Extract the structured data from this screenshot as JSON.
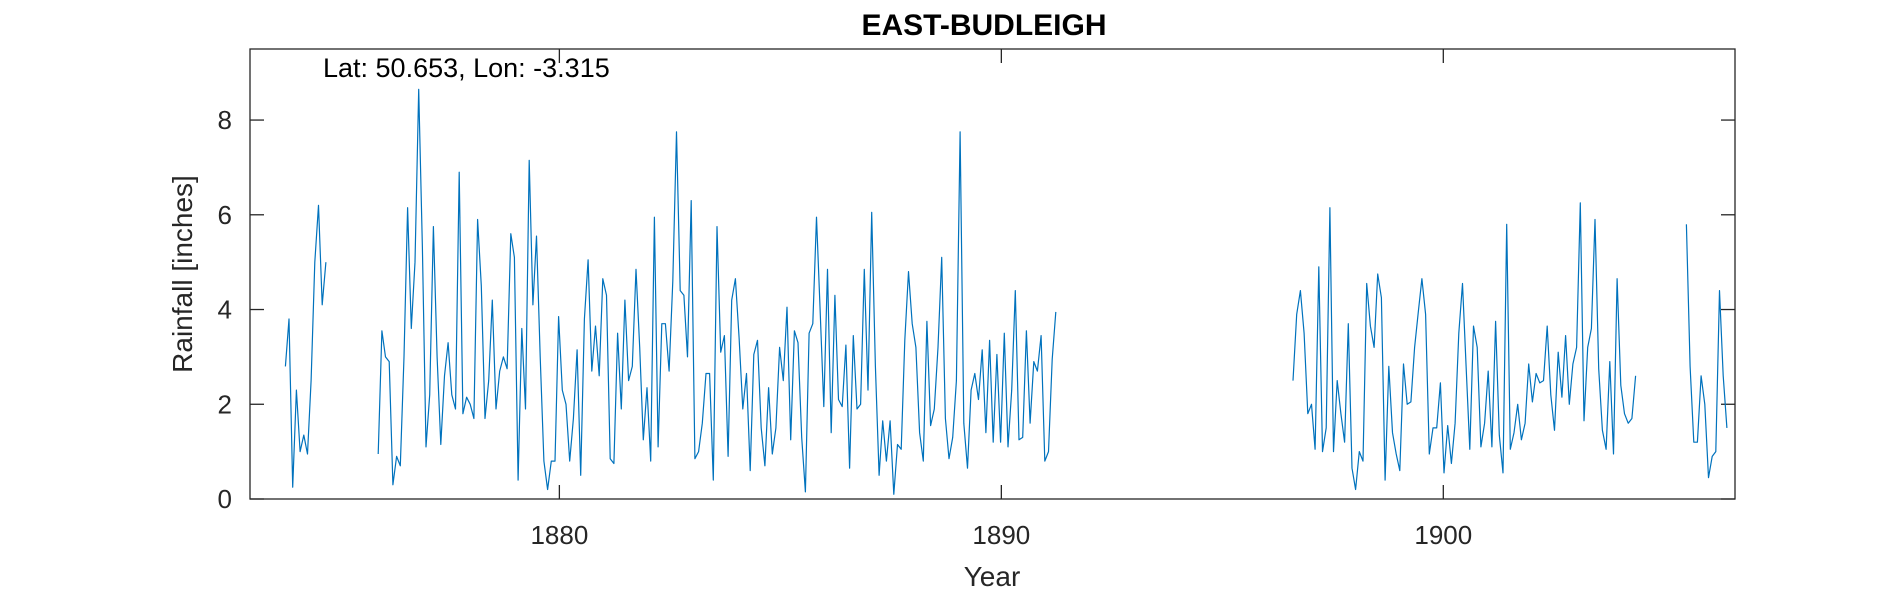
{
  "chart_data": {
    "type": "line",
    "title": "EAST-BUDLEIGH",
    "annotation": "Lat: 50.653, Lon: -3.315",
    "xlabel": "Year",
    "ylabel": "Rainfall [inches]",
    "xlim": [
      1873,
      1906.6
    ],
    "ylim": [
      0,
      9.5
    ],
    "xticks": [
      1880,
      1890,
      1900
    ],
    "yticks": [
      0,
      2,
      4,
      6,
      8
    ],
    "grid": false,
    "box": true,
    "series_color": "#0072BD",
    "segments": [
      {
        "start_year": 1873.8,
        "values": [
          2.8,
          3.8,
          0.25,
          2.3,
          1.0,
          1.35,
          0.95,
          2.5,
          5.0,
          6.2,
          4.1,
          5.0
        ]
      },
      {
        "start_year": 1875.9,
        "values": [
          0.95,
          3.55,
          3.0,
          2.9,
          0.3,
          0.9,
          0.7,
          3.0,
          6.15,
          3.6,
          5.0,
          8.65,
          5.3,
          1.1,
          2.2,
          5.75,
          3.0,
          1.15,
          2.6,
          3.3,
          2.2,
          1.9,
          6.9,
          1.8,
          2.15,
          2.0,
          1.7,
          5.9,
          4.5,
          1.7,
          2.5,
          4.2,
          1.9,
          2.7,
          3.0,
          2.75,
          5.6,
          5.1,
          0.4,
          3.6,
          1.9,
          7.15,
          4.1,
          5.55,
          3.0,
          0.8,
          0.2,
          0.8,
          0.8,
          3.85,
          2.3,
          2.0,
          0.8,
          1.7,
          3.15,
          0.5,
          3.8,
          5.05,
          2.7,
          3.65,
          2.6,
          4.65,
          4.3,
          0.85,
          0.75,
          3.5,
          1.9,
          4.2,
          2.5,
          2.8,
          4.85,
          3.2,
          1.25,
          2.35,
          0.8,
          5.95,
          1.1,
          3.7,
          3.7,
          2.7,
          4.6,
          7.75,
          4.4,
          4.3,
          3.0,
          6.3,
          0.85,
          1.0,
          1.6,
          2.65,
          2.65,
          0.4,
          5.75,
          3.1,
          3.45,
          0.9,
          4.2,
          4.65,
          3.4,
          1.9,
          2.65,
          0.6,
          3.05,
          3.35,
          1.5,
          0.7,
          2.35,
          0.95,
          1.5,
          3.2,
          2.5,
          4.05,
          1.25,
          3.55,
          3.3,
          1.3,
          0.15,
          3.5,
          3.7,
          5.95,
          4.0,
          1.95,
          4.85,
          1.4,
          4.3,
          2.1,
          1.95,
          3.25,
          0.65,
          3.45,
          1.9,
          2.0,
          4.85,
          2.3,
          6.05,
          2.8,
          0.5,
          1.65,
          0.8,
          1.65,
          0.1,
          1.15,
          1.05,
          3.35,
          4.8,
          3.7,
          3.2,
          1.4,
          0.8,
          3.75,
          1.55,
          1.9,
          3.2,
          5.1,
          1.7,
          0.85,
          1.3,
          2.5,
          7.75,
          1.6,
          0.65,
          2.3,
          2.65,
          2.1,
          3.15,
          1.4,
          3.35,
          1.2,
          3.05,
          1.2,
          3.5,
          1.1,
          2.3,
          4.4,
          1.25,
          1.3,
          3.55,
          1.6,
          2.9,
          2.7,
          3.45,
          0.8,
          1.0,
          2.95,
          3.95
        ]
      },
      {
        "start_year": 1896.6,
        "values": [
          2.5,
          3.9,
          4.4,
          3.5,
          1.8,
          2.0,
          1.05,
          4.9,
          1.0,
          1.5,
          6.15,
          1.0,
          2.5,
          1.8,
          1.2,
          3.7,
          0.65,
          0.2,
          1.0,
          0.8,
          4.55,
          3.65,
          3.2,
          4.75,
          4.25,
          0.4,
          2.8,
          1.4,
          0.95,
          0.6,
          2.85,
          2.0,
          2.05,
          3.2,
          3.95,
          4.65,
          3.9,
          0.95,
          1.5,
          1.5,
          2.45,
          0.55,
          1.55,
          0.75,
          1.6,
          3.5,
          4.55,
          2.8,
          1.05,
          3.65,
          3.2,
          1.1,
          1.6,
          2.7,
          1.1,
          3.75,
          1.35,
          0.55,
          5.8,
          1.05,
          1.4,
          2.0,
          1.25,
          1.6,
          2.85,
          2.05,
          2.65,
          2.45,
          2.5,
          3.65,
          2.2,
          1.45,
          3.1,
          2.15,
          3.45,
          2.0,
          2.85,
          3.2,
          6.25,
          1.65,
          3.2,
          3.6,
          5.9,
          2.75,
          1.45,
          1.05,
          2.9,
          0.95,
          4.65,
          2.4,
          1.8,
          1.6,
          1.7,
          2.6
        ]
      },
      {
        "start_year": 1905.5,
        "values": [
          5.8,
          2.8,
          1.2,
          1.2,
          2.6,
          2.0,
          0.45,
          0.9,
          1.0,
          4.4,
          2.6,
          1.5
        ]
      }
    ]
  }
}
